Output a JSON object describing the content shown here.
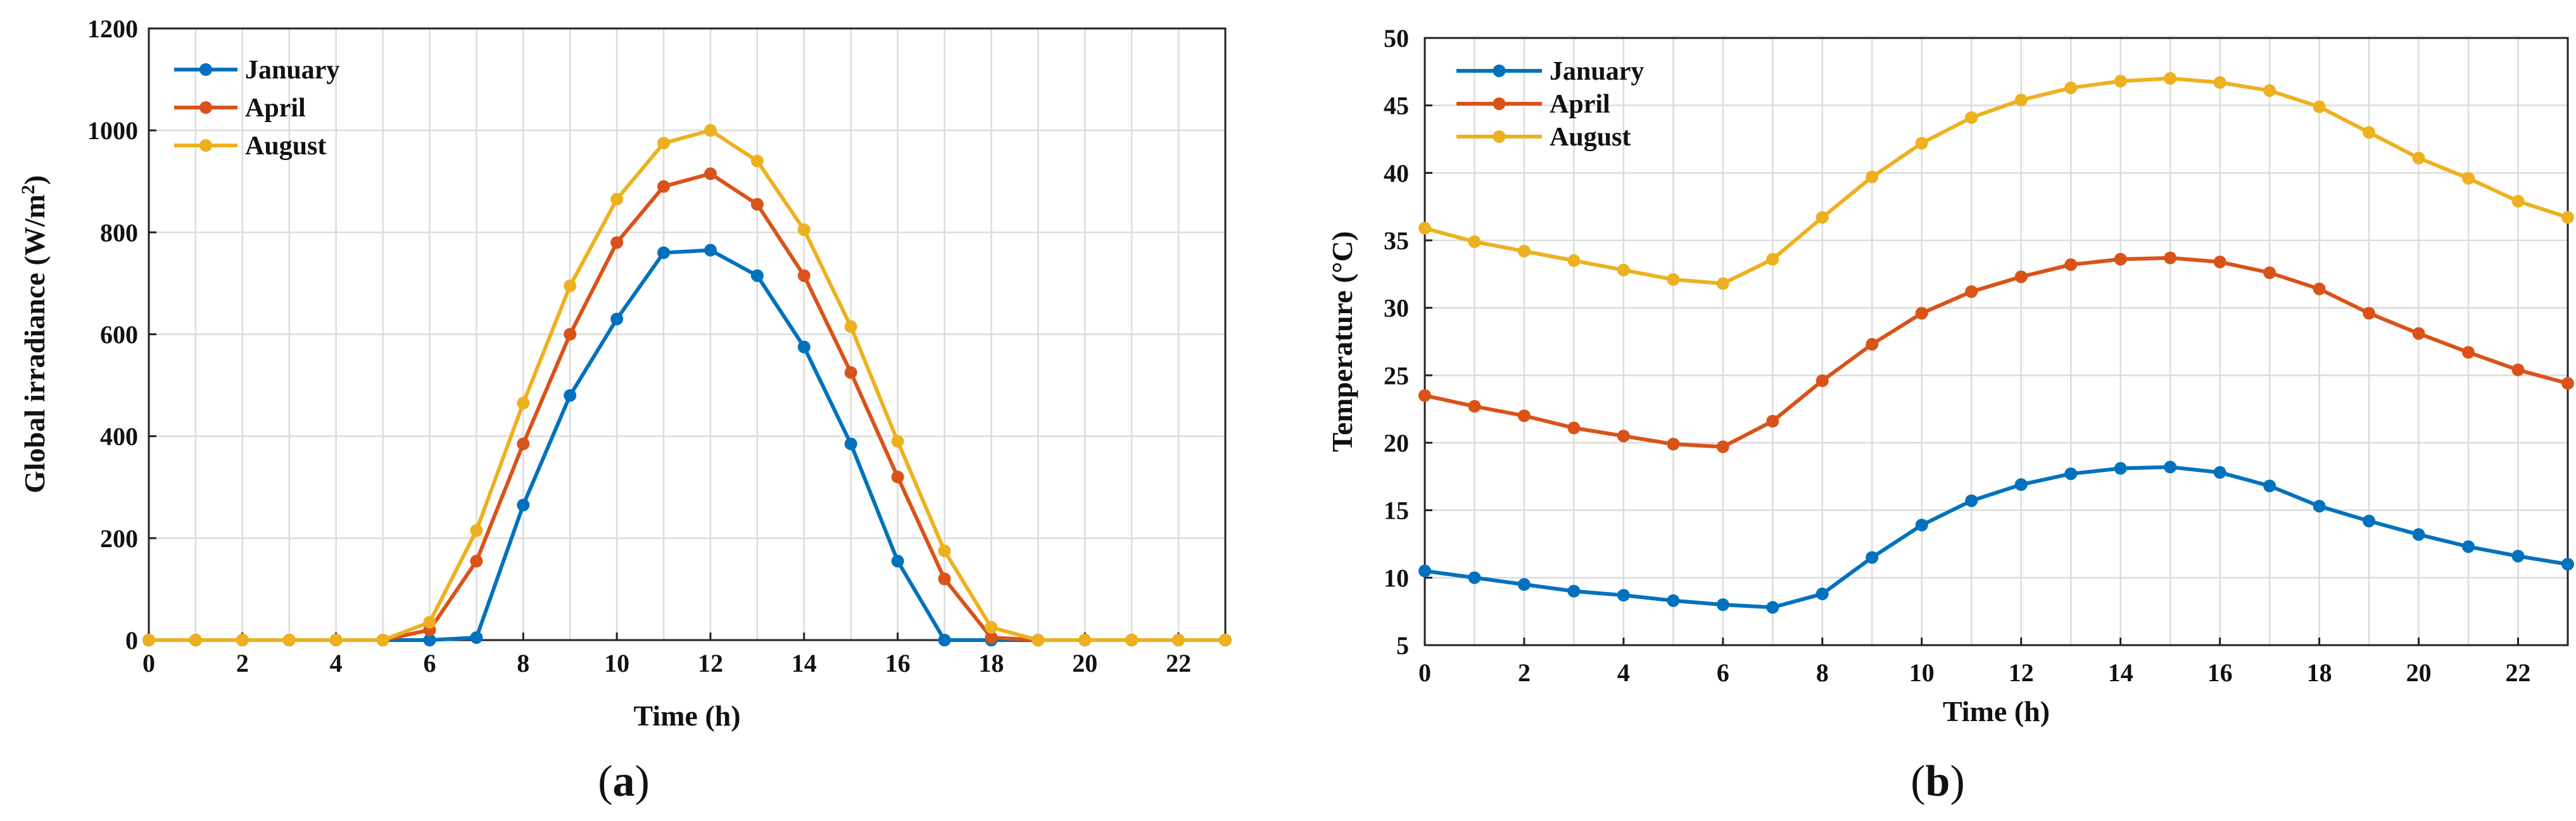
{
  "chart_data": [
    {
      "type": "line",
      "panel_label": "a",
      "title": "",
      "xlabel": "Time (h)",
      "ylabel": "Global irradiance (W/m",
      "ylabel_sup": "2",
      "ylabel_end": ")",
      "xlim": [
        0,
        23
      ],
      "ylim": [
        0,
        1200
      ],
      "xticks": [
        0,
        2,
        4,
        6,
        8,
        10,
        12,
        14,
        16,
        18,
        20,
        22
      ],
      "yticks": [
        0,
        200,
        400,
        600,
        800,
        1000,
        1200
      ],
      "grid": true,
      "legend_position": "top-left",
      "x": [
        0,
        1,
        2,
        3,
        4,
        5,
        6,
        7,
        8,
        9,
        10,
        11,
        12,
        13,
        14,
        15,
        16,
        17,
        18,
        19,
        20,
        21,
        22,
        23
      ],
      "series": [
        {
          "name": "January",
          "color": "#0072BD",
          "values": [
            0,
            0,
            0,
            0,
            0,
            0,
            0,
            5,
            265,
            480,
            630,
            760,
            765,
            715,
            575,
            385,
            155,
            0,
            0,
            0,
            0,
            0,
            0,
            0
          ]
        },
        {
          "name": "April",
          "color": "#D95319",
          "values": [
            0,
            0,
            0,
            0,
            0,
            0,
            20,
            155,
            385,
            600,
            780,
            890,
            915,
            855,
            715,
            525,
            320,
            120,
            5,
            0,
            0,
            0,
            0,
            0
          ]
        },
        {
          "name": "August",
          "color": "#EDB120",
          "values": [
            0,
            0,
            0,
            0,
            0,
            0,
            35,
            215,
            465,
            695,
            865,
            975,
            1000,
            940,
            805,
            615,
            390,
            175,
            25,
            0,
            0,
            0,
            0,
            0
          ]
        }
      ]
    },
    {
      "type": "line",
      "panel_label": "b",
      "title": "",
      "xlabel": "Time (h)",
      "ylabel": "Temperature (°C)",
      "xlim": [
        0,
        23
      ],
      "ylim": [
        5,
        50
      ],
      "xticks": [
        0,
        2,
        4,
        6,
        8,
        10,
        12,
        14,
        16,
        18,
        20,
        22
      ],
      "yticks": [
        5,
        10,
        15,
        20,
        25,
        30,
        35,
        40,
        45,
        50
      ],
      "grid": true,
      "legend_position": "top-left",
      "x": [
        0,
        1,
        2,
        3,
        4,
        5,
        6,
        7,
        8,
        9,
        10,
        11,
        12,
        13,
        14,
        15,
        16,
        17,
        18,
        19,
        20,
        21,
        22,
        23
      ],
      "series": [
        {
          "name": "January",
          "color": "#0072BD",
          "values": [
            10.5,
            10.0,
            9.5,
            9.0,
            8.7,
            8.3,
            8.0,
            7.8,
            8.8,
            11.5,
            13.9,
            15.7,
            16.9,
            17.7,
            18.1,
            18.2,
            17.8,
            16.8,
            15.3,
            14.2,
            13.2,
            12.3,
            11.6,
            11.0
          ]
        },
        {
          "name": "April",
          "color": "#D95319",
          "values": [
            23.5,
            22.7,
            22.0,
            21.1,
            20.5,
            19.9,
            19.7,
            21.6,
            24.6,
            27.3,
            29.6,
            31.2,
            32.3,
            33.2,
            33.6,
            33.7,
            33.4,
            32.6,
            31.4,
            29.6,
            28.1,
            26.7,
            25.4,
            24.4
          ]
        },
        {
          "name": "August",
          "color": "#EDB120",
          "values": [
            35.9,
            34.9,
            34.2,
            33.5,
            32.8,
            32.1,
            31.8,
            33.6,
            36.7,
            39.7,
            42.2,
            44.1,
            45.4,
            46.3,
            46.8,
            47.0,
            46.7,
            46.1,
            44.9,
            43.0,
            41.1,
            39.6,
            37.9,
            36.7
          ]
        }
      ]
    }
  ]
}
